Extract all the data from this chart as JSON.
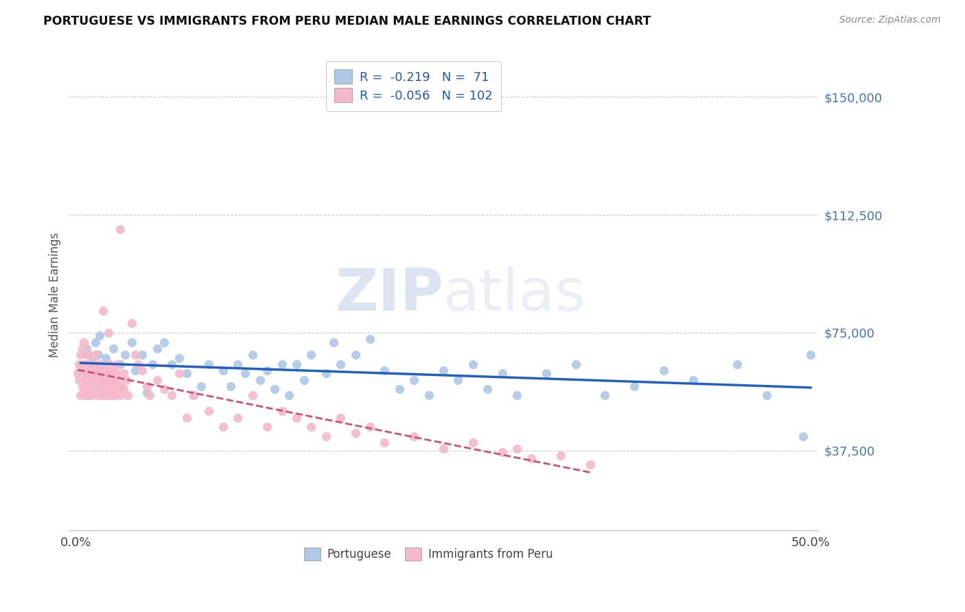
{
  "title": "PORTUGUESE VS IMMIGRANTS FROM PERU MEDIAN MALE EARNINGS CORRELATION CHART",
  "source": "Source: ZipAtlas.com",
  "ylabel": "Median Male Earnings",
  "xlim": [
    -0.005,
    0.505
  ],
  "ylim": [
    12000,
    162000
  ],
  "yticks": [
    37500,
    75000,
    112500,
    150000
  ],
  "ytick_labels": [
    "$37,500",
    "$75,000",
    "$112,500",
    "$150,000"
  ],
  "xticks": [
    0.0,
    0.1,
    0.2,
    0.3,
    0.4,
    0.5
  ],
  "xtick_labels": [
    "0.0%",
    "",
    "",
    "",
    "",
    "50.0%"
  ],
  "blue_color": "#aec8e8",
  "pink_color": "#f5b8cb",
  "trend_blue_color": "#2060c0",
  "trend_pink_color": "#d05070",
  "legend_label_blue": "Portuguese",
  "legend_label_pink": "Immigrants from Peru",
  "R_blue": -0.219,
  "N_blue": 71,
  "R_pink": -0.056,
  "N_pink": 102,
  "watermark": "ZIPatlas",
  "blue_scatter_x": [
    0.003,
    0.005,
    0.006,
    0.007,
    0.008,
    0.009,
    0.01,
    0.011,
    0.012,
    0.013,
    0.015,
    0.016,
    0.017,
    0.019,
    0.02,
    0.022,
    0.025,
    0.027,
    0.03,
    0.033,
    0.038,
    0.04,
    0.045,
    0.048,
    0.052,
    0.055,
    0.06,
    0.065,
    0.07,
    0.075,
    0.08,
    0.085,
    0.09,
    0.1,
    0.105,
    0.11,
    0.115,
    0.12,
    0.125,
    0.13,
    0.135,
    0.14,
    0.145,
    0.15,
    0.155,
    0.16,
    0.17,
    0.175,
    0.18,
    0.19,
    0.2,
    0.21,
    0.22,
    0.23,
    0.24,
    0.25,
    0.26,
    0.27,
    0.28,
    0.29,
    0.3,
    0.32,
    0.34,
    0.36,
    0.38,
    0.4,
    0.42,
    0.45,
    0.47,
    0.495,
    0.5
  ],
  "blue_scatter_y": [
    63000,
    65000,
    60000,
    70000,
    55000,
    68000,
    64000,
    66000,
    62000,
    72000,
    68000,
    74000,
    58000,
    64000,
    67000,
    63000,
    70000,
    61000,
    65000,
    68000,
    72000,
    63000,
    68000,
    56000,
    65000,
    70000,
    72000,
    65000,
    67000,
    62000,
    55000,
    58000,
    65000,
    63000,
    58000,
    65000,
    62000,
    68000,
    60000,
    63000,
    57000,
    65000,
    55000,
    65000,
    60000,
    68000,
    62000,
    72000,
    65000,
    68000,
    73000,
    63000,
    57000,
    60000,
    55000,
    63000,
    60000,
    65000,
    57000,
    62000,
    55000,
    62000,
    65000,
    55000,
    58000,
    63000,
    60000,
    65000,
    55000,
    42000,
    68000
  ],
  "pink_scatter_x": [
    0.001,
    0.002,
    0.002,
    0.003,
    0.003,
    0.004,
    0.004,
    0.005,
    0.005,
    0.005,
    0.006,
    0.006,
    0.006,
    0.007,
    0.007,
    0.007,
    0.008,
    0.008,
    0.008,
    0.009,
    0.009,
    0.01,
    0.01,
    0.01,
    0.011,
    0.011,
    0.012,
    0.012,
    0.013,
    0.013,
    0.014,
    0.014,
    0.015,
    0.015,
    0.016,
    0.016,
    0.017,
    0.017,
    0.018,
    0.018,
    0.019,
    0.019,
    0.02,
    0.02,
    0.021,
    0.021,
    0.022,
    0.022,
    0.023,
    0.023,
    0.024,
    0.024,
    0.025,
    0.025,
    0.026,
    0.026,
    0.027,
    0.027,
    0.028,
    0.028,
    0.03,
    0.03,
    0.032,
    0.032,
    0.034,
    0.035,
    0.038,
    0.04,
    0.042,
    0.045,
    0.048,
    0.05,
    0.055,
    0.06,
    0.065,
    0.07,
    0.075,
    0.08,
    0.09,
    0.1,
    0.11,
    0.12,
    0.13,
    0.14,
    0.15,
    0.16,
    0.17,
    0.18,
    0.19,
    0.2,
    0.21,
    0.23,
    0.25,
    0.27,
    0.29,
    0.3,
    0.31,
    0.33,
    0.35,
    0.03,
    0.018,
    0.022
  ],
  "pink_scatter_y": [
    62000,
    65000,
    60000,
    68000,
    55000,
    70000,
    58000,
    72000,
    63000,
    57000,
    65000,
    60000,
    55000,
    68000,
    62000,
    58000,
    65000,
    60000,
    55000,
    68000,
    62000,
    65000,
    60000,
    55000,
    62000,
    57000,
    65000,
    60000,
    68000,
    58000,
    63000,
    55000,
    62000,
    57000,
    65000,
    60000,
    63000,
    55000,
    60000,
    57000,
    62000,
    55000,
    58000,
    63000,
    60000,
    55000,
    62000,
    57000,
    65000,
    60000,
    55000,
    62000,
    58000,
    63000,
    60000,
    55000,
    62000,
    57000,
    65000,
    60000,
    55000,
    58000,
    62000,
    57000,
    60000,
    55000,
    78000,
    68000,
    65000,
    63000,
    58000,
    55000,
    60000,
    57000,
    55000,
    62000,
    48000,
    55000,
    50000,
    45000,
    48000,
    55000,
    45000,
    50000,
    48000,
    45000,
    42000,
    48000,
    43000,
    45000,
    40000,
    42000,
    38000,
    40000,
    37000,
    38000,
    35000,
    36000,
    33000,
    108000,
    82000,
    75000
  ]
}
